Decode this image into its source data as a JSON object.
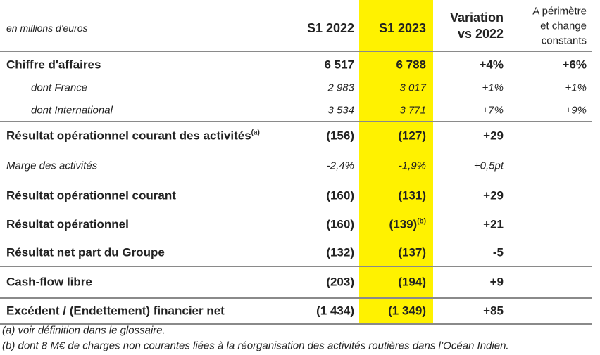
{
  "table": {
    "caption": "en millions d'euros",
    "columns": [
      [
        "S1 2022"
      ],
      [
        "S1 2023"
      ],
      [
        "Variation",
        "vs 2022"
      ],
      [
        "A périmètre",
        "et change",
        "constants"
      ]
    ],
    "rows": [
      {
        "kind": "bold",
        "label": "Chiffre d'affaires",
        "cells": [
          "6 517",
          "6 788",
          "+4%",
          "+6%"
        ]
      },
      {
        "kind": "indent",
        "label": "dont France",
        "cells": [
          "2 983",
          "3 017",
          "+1%",
          "+1%"
        ]
      },
      {
        "kind": "indent",
        "label": "dont International",
        "cells": [
          "3 534",
          "3 771",
          "+7%",
          "+9%"
        ]
      },
      {
        "kind": "bold",
        "label": "Résultat opérationnel courant des activités",
        "note": "(a)",
        "cells": [
          "(156)",
          "(127)",
          "+29",
          null
        ]
      },
      {
        "kind": "italic",
        "label": "Marge des activités",
        "cells": [
          "-2,4%",
          "-1,9%",
          "+0,5pt",
          null
        ]
      },
      {
        "kind": "bold",
        "label": "Résultat opérationnel courant",
        "cells": [
          "(160)",
          "(131)",
          "+29",
          null
        ]
      },
      {
        "kind": "bold",
        "label": "Résultat opérationnel",
        "cells": [
          "(160)",
          {
            "text": "(139)",
            "note": "(b)"
          },
          "+21",
          null
        ]
      },
      {
        "kind": "bold",
        "label": "Résultat net part du Groupe",
        "cells": [
          "(132)",
          "(137)",
          "-5",
          null
        ]
      },
      {
        "kind": "bold",
        "label": "Cash-flow libre",
        "cells": [
          "(203)",
          "(194)",
          "+9",
          null
        ]
      },
      {
        "kind": "bold",
        "label": "Excédent / (Endettement) financier net",
        "cells": [
          "(1 434)",
          "(1 349)",
          "+85",
          null
        ]
      }
    ],
    "footnotes": [
      "(a) voir définition dans le glossaire.",
      "(b) dont 8 M€ de charges non courantes liées à la réorganisation des activités routières dans l’Océan Indien."
    ]
  }
}
